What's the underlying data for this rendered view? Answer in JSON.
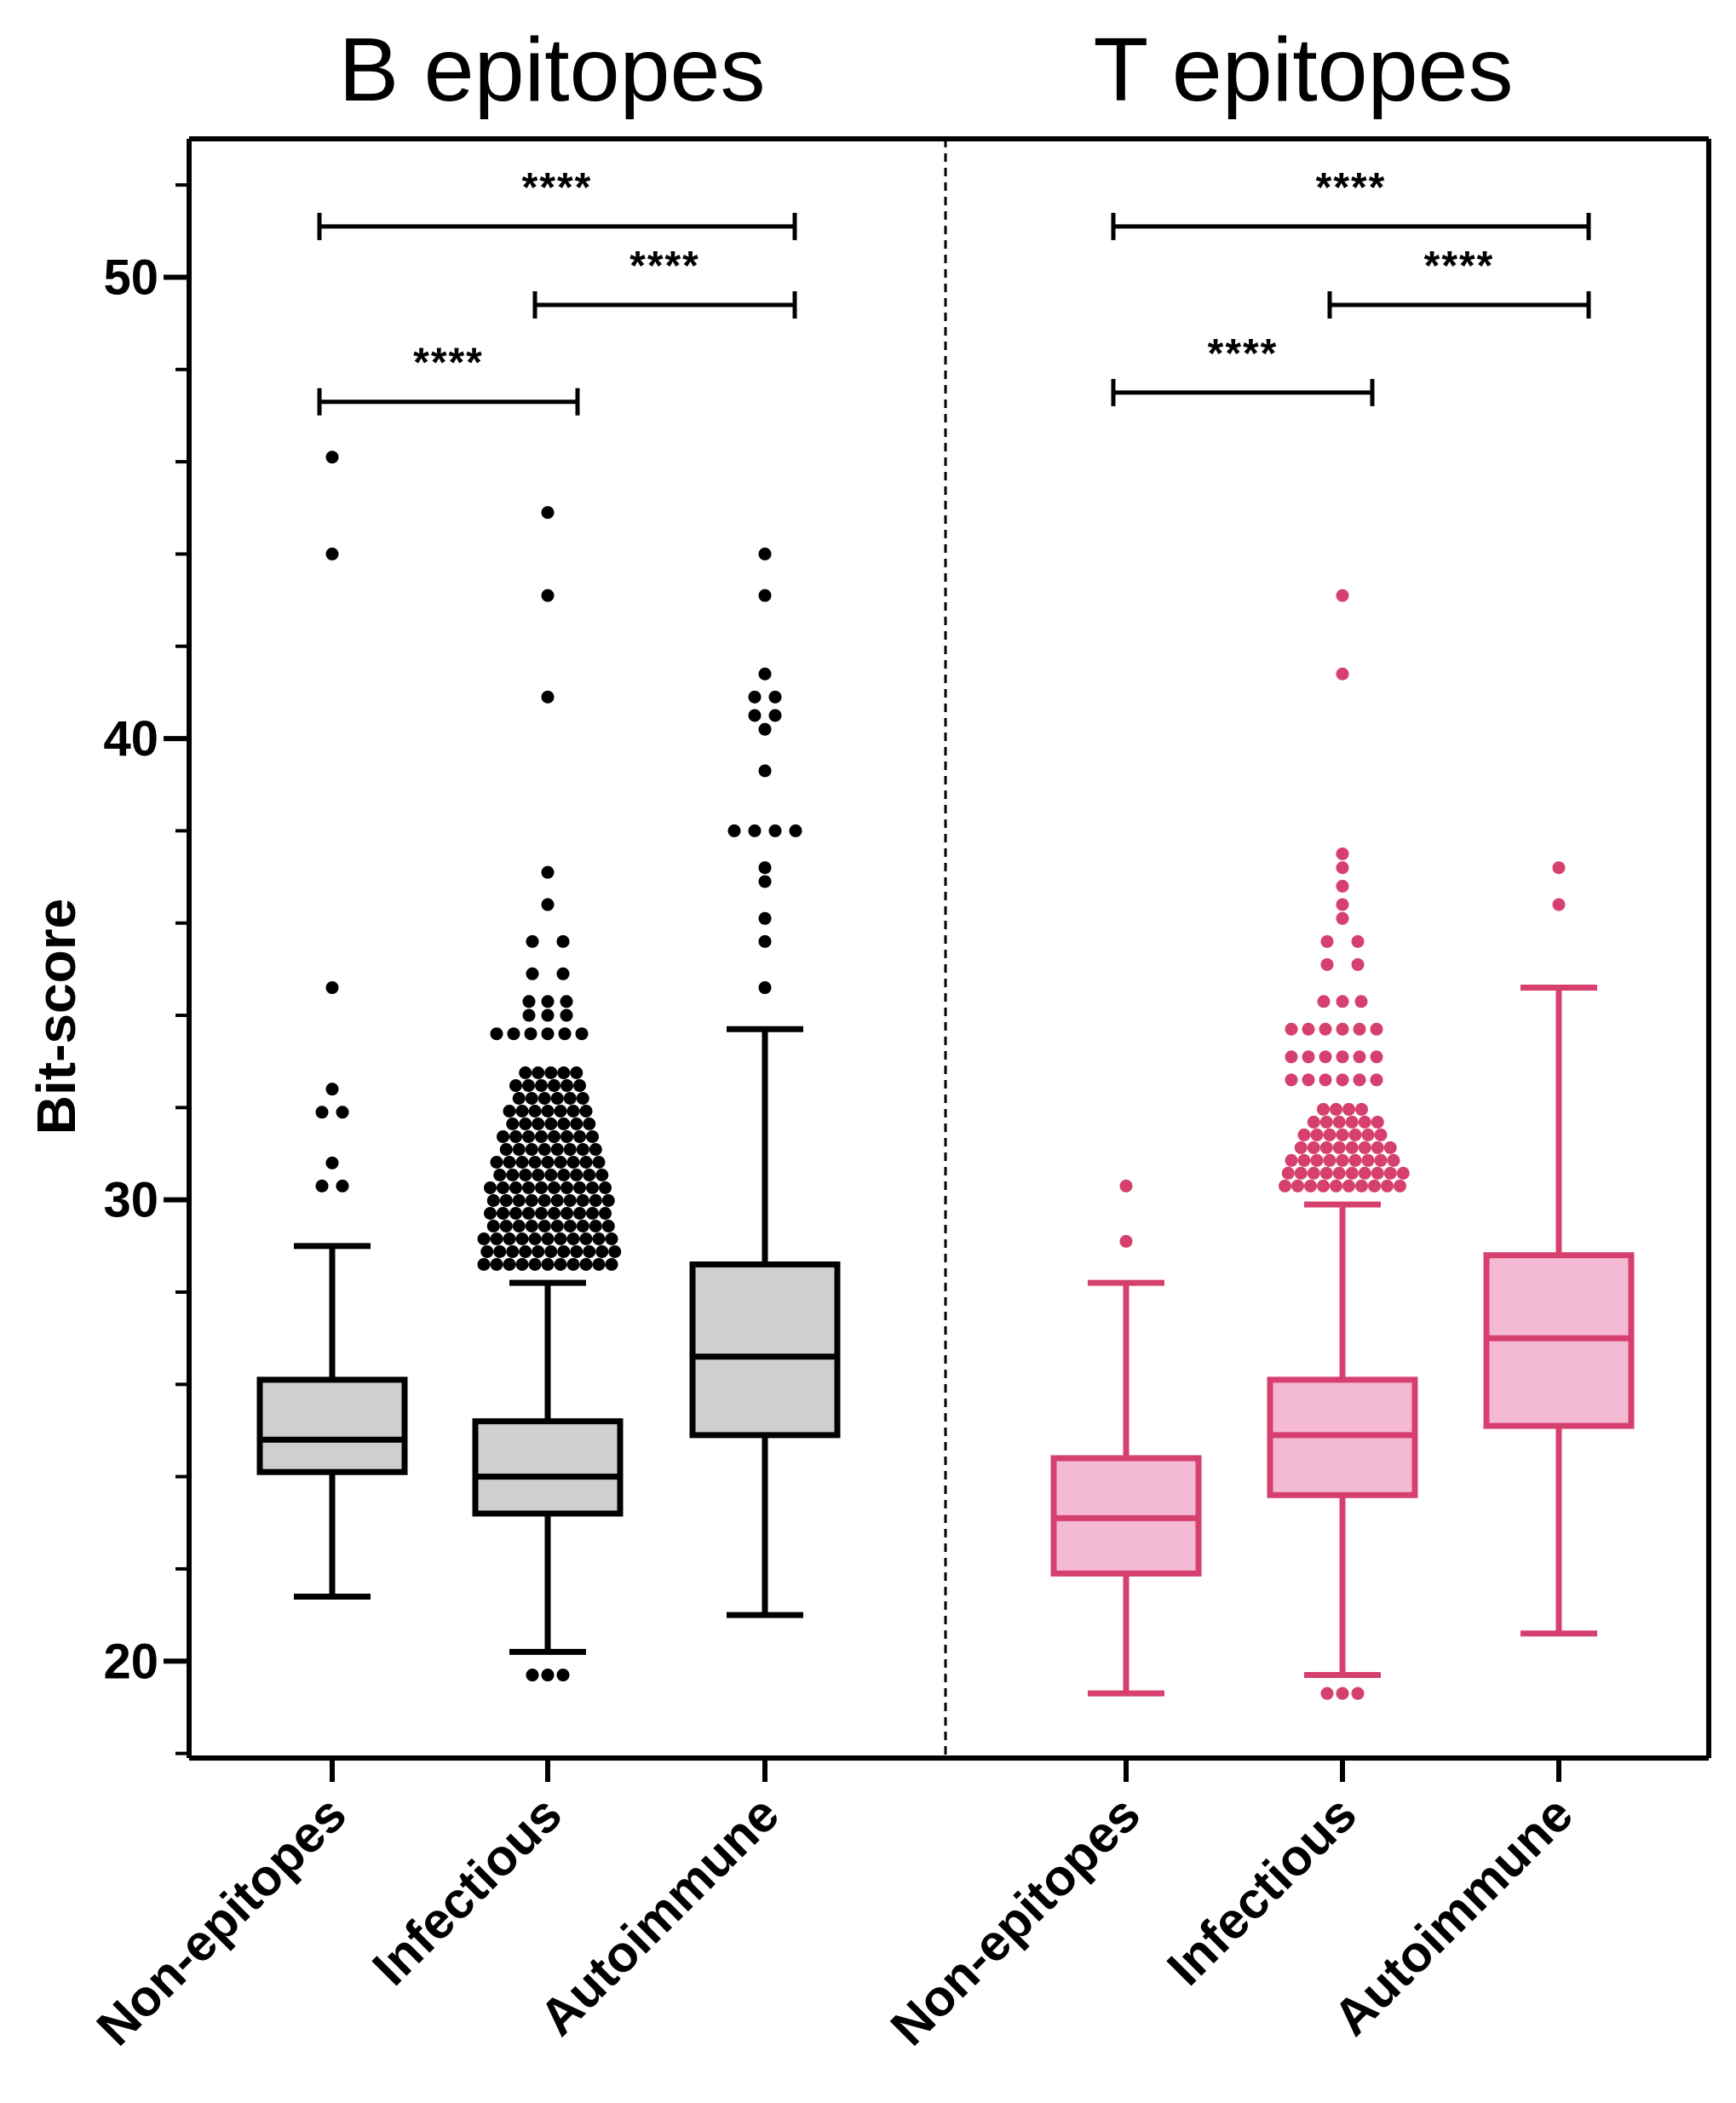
{
  "chart_data": {
    "type": "box",
    "ylabel": "Bit-score",
    "ylim": [
      17.9,
      53
    ],
    "yticks": [
      20,
      30,
      40,
      50
    ],
    "panels": [
      {
        "title": "B epitopes",
        "color": "#000000",
        "box_fill": "#cfcfcd",
        "categories": [
          "Non-epitopes",
          "Infectious",
          "Autoimmune"
        ],
        "boxes": [
          {
            "whisker_low": 21.4,
            "q1": 24.1,
            "median": 24.8,
            "q3": 26.1,
            "whisker_high": 29.0,
            "outliers": [
              30.3,
              30.8,
              31.9,
              32.4,
              34.6,
              44.0,
              46.1
            ]
          },
          {
            "whisker_low": 20.2,
            "q1": 23.2,
            "median": 24.0,
            "q3": 25.2,
            "whisker_high": 28.2,
            "outliers_dense_range": [
              28.6,
              33.0
            ],
            "outliers": [
              19.7,
              33.6,
              34.0,
              34.3,
              34.9,
              35.6,
              36.4,
              37.1,
              40.9,
              43.1,
              44.9
            ]
          },
          {
            "whisker_low": 21.0,
            "q1": 24.9,
            "median": 26.6,
            "q3": 28.6,
            "whisker_high": 33.7,
            "outliers": [
              34.6,
              35.6,
              36.1,
              36.9,
              37.2,
              38.0,
              39.3,
              40.2,
              40.5,
              40.9,
              41.4,
              43.1,
              44.0
            ]
          }
        ],
        "comparisons": [
          {
            "from": 0,
            "to": 2,
            "y": 51.1,
            "label": "****"
          },
          {
            "from": 1,
            "to": 2,
            "y": 49.4,
            "label": "****"
          },
          {
            "from": 0,
            "to": 1,
            "y": 47.3,
            "label": "****"
          }
        ]
      },
      {
        "title": "T epitopes",
        "color": "#d6406e",
        "box_fill": "#f4b9d3",
        "categories": [
          "Non-epitopes",
          "Infectious",
          "Autoimmune"
        ],
        "boxes": [
          {
            "whisker_low": 19.3,
            "q1": 21.9,
            "median": 23.1,
            "q3": 24.4,
            "whisker_high": 28.2,
            "outliers": [
              29.1,
              30.3
            ]
          },
          {
            "whisker_low": 19.7,
            "q1": 23.6,
            "median": 24.9,
            "q3": 26.1,
            "whisker_high": 29.9,
            "outliers_dense_range": [
              30.3,
              32.0
            ],
            "outliers": [
              19.3,
              32.6,
              33.1,
              33.7,
              34.3,
              35.1,
              35.6,
              36.1,
              36.4,
              36.8,
              37.2,
              37.5,
              41.4,
              43.1
            ]
          },
          {
            "whisker_low": 20.6,
            "q1": 25.1,
            "median": 27.0,
            "q3": 28.8,
            "whisker_high": 34.6,
            "outliers": [
              36.4,
              37.2
            ]
          }
        ],
        "comparisons": [
          {
            "from": 0,
            "to": 2,
            "y": 51.1,
            "label": "****"
          },
          {
            "from": 1,
            "to": 2,
            "y": 49.4,
            "label": "****"
          },
          {
            "from": 0,
            "to": 1,
            "y": 47.5,
            "label": "****"
          }
        ]
      }
    ]
  }
}
